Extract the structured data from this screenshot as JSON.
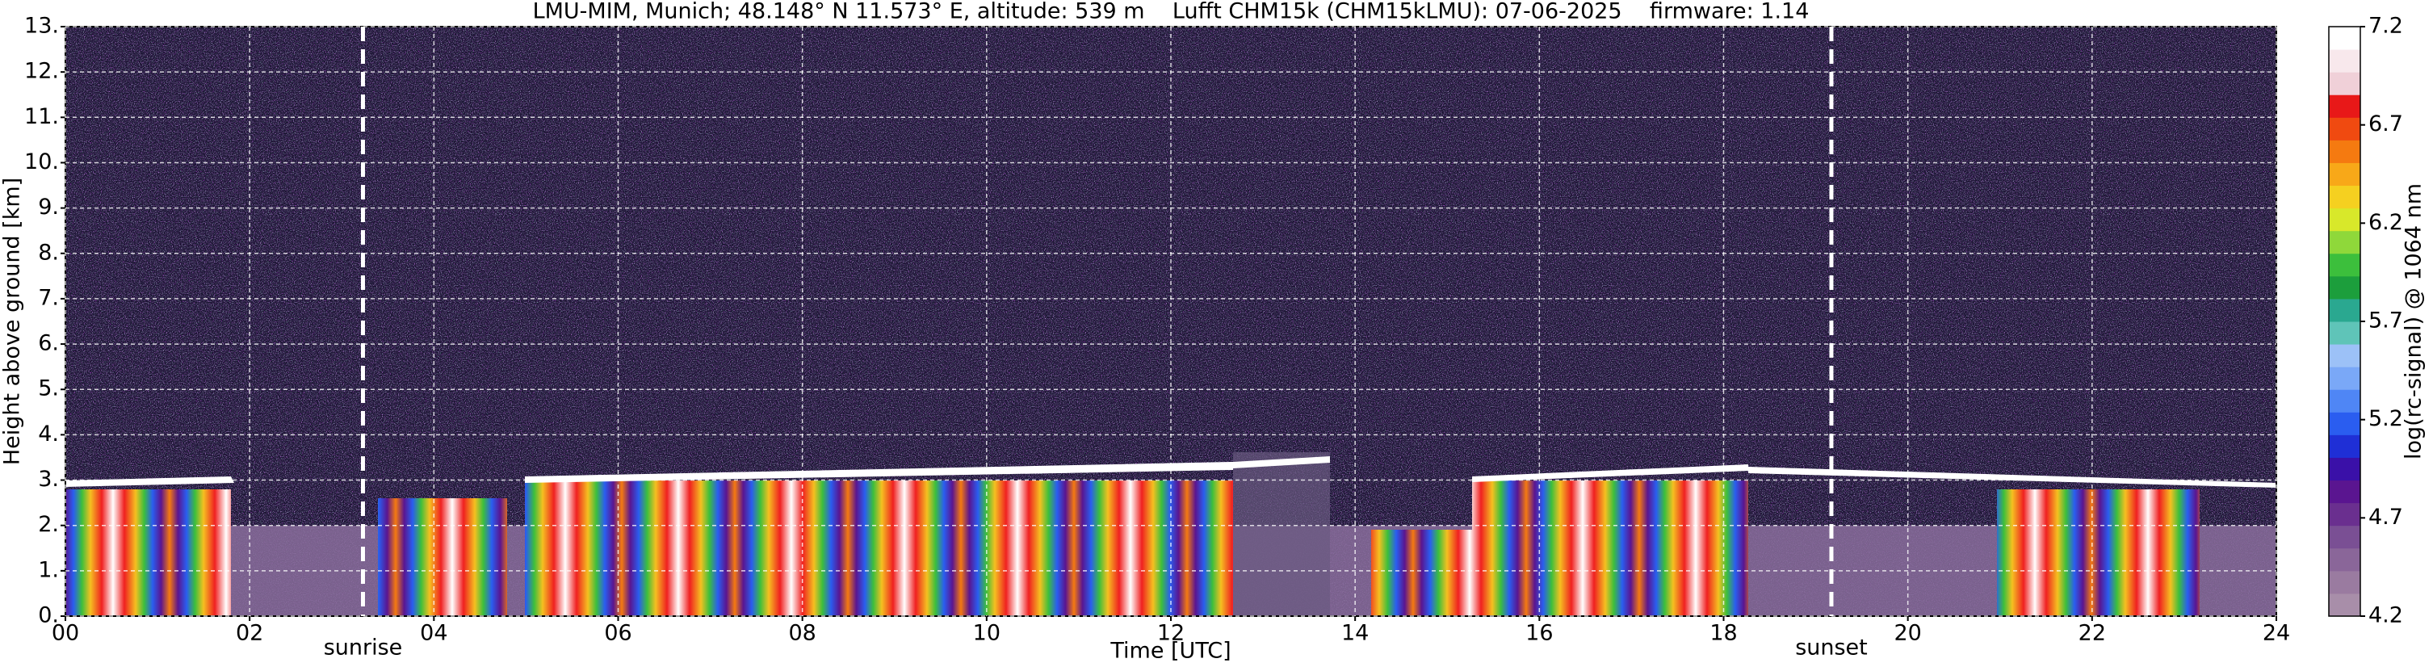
{
  "chart_data": {
    "type": "heatmap",
    "title": "LMU-MIM, Munich; 48.148° N 11.573° E, altitude: 539 m    Lufft CHM15k (CHM15kLMU): 07-06-2025    firmware: 1.14",
    "xlabel": "Time [UTC]",
    "ylabel": "Height above ground [km]",
    "xlim": [
      0,
      24
    ],
    "xticks": [
      {
        "value": 0,
        "label": "00"
      },
      {
        "value": 2,
        "label": "02"
      },
      {
        "value": 4,
        "label": "04"
      },
      {
        "value": 6,
        "label": "06"
      },
      {
        "value": 8,
        "label": "08"
      },
      10,
      12,
      14,
      16,
      18,
      20,
      22,
      24
    ],
    "ylim": [
      0,
      13
    ],
    "yticks": [
      {
        "value": 0,
        "label": "0."
      },
      {
        "value": 1,
        "label": "1."
      },
      {
        "value": 2,
        "label": "2."
      },
      {
        "value": 3,
        "label": "3."
      },
      {
        "value": 4,
        "label": "4."
      },
      {
        "value": 5,
        "label": "5."
      },
      {
        "value": 6,
        "label": "6."
      },
      {
        "value": 7,
        "label": "7."
      },
      {
        "value": 8,
        "label": "8."
      },
      {
        "value": 9,
        "label": "9."
      },
      {
        "value": 10,
        "label": "10."
      },
      {
        "value": 11,
        "label": "11."
      },
      {
        "value": 12,
        "label": "12."
      },
      {
        "value": 13,
        "label": "13."
      }
    ],
    "grid": true,
    "annotations": [
      {
        "label": "sunrise",
        "x": 3.23
      },
      {
        "label": "sunset",
        "x": 19.17
      }
    ],
    "colorbar": {
      "label": "log(rc-signal) @ 1064 nm",
      "clim": [
        4.2,
        7.2
      ],
      "ticks": [
        4.2,
        4.7,
        5.2,
        5.7,
        6.2,
        6.7,
        7.2
      ],
      "colormap": [
        "#a88ea9",
        "#9a7ba0",
        "#8a6699",
        "#7a4f94",
        "#6a2f8f",
        "#5a1590",
        "#3a10a8",
        "#1f2fd6",
        "#2a5df0",
        "#4f86f5",
        "#7aa8f7",
        "#9cc1f7",
        "#5fc4b8",
        "#2aa890",
        "#1c9e3c",
        "#3cbf3c",
        "#8fd83a",
        "#d8e82a",
        "#f5d020",
        "#f8a818",
        "#f57a10",
        "#f04a10",
        "#e81818",
        "#f0d0d8",
        "#f8e8ec",
        "#ffffff"
      ]
    }
  }
}
